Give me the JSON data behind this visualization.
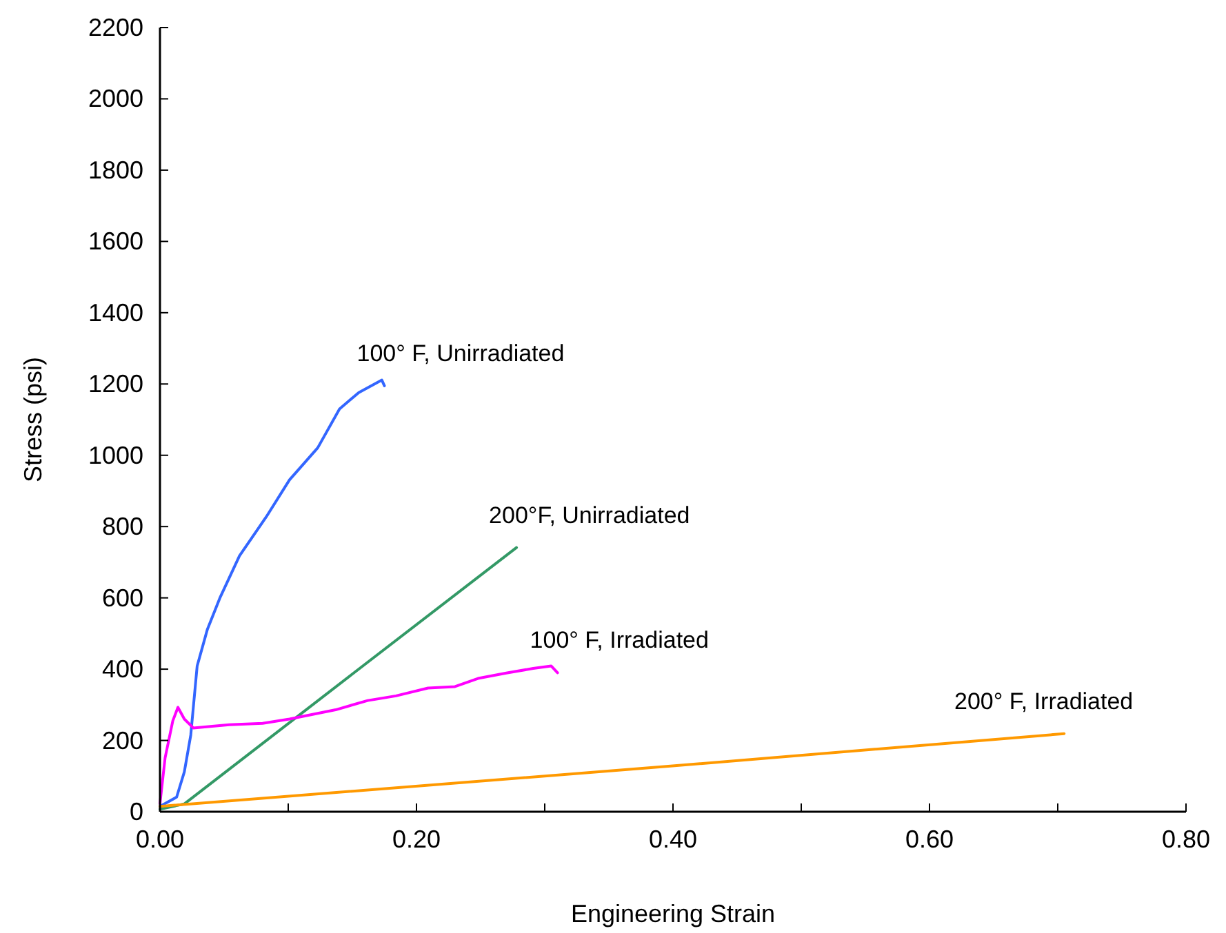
{
  "chart_data": {
    "type": "line",
    "xlabel": "Engineering Strain",
    "ylabel": "Stress (psi)",
    "xlim": [
      0,
      0.8
    ],
    "ylim": [
      0,
      2200
    ],
    "xticks": [
      {
        "value": 0,
        "label": "0.00"
      },
      {
        "value": 0.1,
        "label": null
      },
      {
        "value": 0.2,
        "label": "0.20"
      },
      {
        "value": 0.3,
        "label": null
      },
      {
        "value": 0.4,
        "label": "0.40"
      },
      {
        "value": 0.5,
        "label": null
      },
      {
        "value": 0.6,
        "label": "0.60"
      },
      {
        "value": 0.7,
        "label": null
      },
      {
        "value": 0.8,
        "label": "0.80"
      }
    ],
    "yticks": [
      0,
      200,
      400,
      600,
      800,
      1000,
      1200,
      1400,
      1600,
      1800,
      2000,
      2200
    ],
    "grid": false,
    "marker": "none",
    "line_style": "solid",
    "series": [
      {
        "name": "100° F, Unirradiated",
        "color": "#3366ff",
        "x": [
          0,
          0.013,
          0.019,
          0.024,
          0.029,
          0.037,
          0.047,
          0.062,
          0.083,
          0.101,
          0.123,
          0.14,
          0.155,
          0.173,
          0.175
        ],
        "values": [
          15,
          41,
          112,
          215,
          409,
          512,
          602,
          718,
          828,
          931,
          1021,
          1130,
          1176,
          1211,
          1195
        ]
      },
      {
        "name": "200°F, Unirradiated",
        "color": "#339966",
        "x": [
          0,
          0.019,
          0.151,
          0.278
        ],
        "values": [
          7,
          22,
          389,
          741
        ]
      },
      {
        "name": "100° F, Irradiated",
        "color": "#ff00ff",
        "x": [
          0,
          0.004,
          0.01,
          0.014,
          0.019,
          0.026,
          0.054,
          0.08,
          0.101,
          0.137,
          0.162,
          0.184,
          0.209,
          0.23,
          0.248,
          0.27,
          0.291,
          0.305,
          0.31
        ],
        "values": [
          23,
          151,
          255,
          293,
          260,
          235,
          244,
          248,
          260,
          286,
          312,
          325,
          347,
          351,
          374,
          389,
          402,
          409,
          390
        ]
      },
      {
        "name": "200° F, Irradiated",
        "color": "#ff9900",
        "x": [
          0,
          0.398,
          0.705
        ],
        "values": [
          15,
          128,
          219
        ]
      }
    ]
  }
}
